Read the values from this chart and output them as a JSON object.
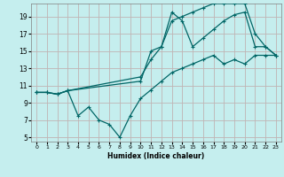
{
  "xlabel": "Humidex (Indice chaleur)",
  "bg_color": "#c5eeee",
  "grid_color": "#c0b4b4",
  "line_color": "#006666",
  "xlim": [
    -0.5,
    23.5
  ],
  "ylim": [
    4.5,
    20.5
  ],
  "xticks": [
    0,
    1,
    2,
    3,
    4,
    5,
    6,
    7,
    8,
    9,
    10,
    11,
    12,
    13,
    14,
    15,
    16,
    17,
    18,
    19,
    20,
    21,
    22,
    23
  ],
  "yticks": [
    5,
    7,
    9,
    11,
    13,
    15,
    17,
    19
  ],
  "line1_x": [
    0,
    1,
    2,
    3,
    10,
    11,
    12,
    13,
    14,
    15,
    16,
    17,
    18,
    19,
    20,
    21,
    22,
    23
  ],
  "line1_y": [
    10.2,
    10.2,
    10.0,
    10.4,
    11.5,
    15.0,
    15.5,
    18.5,
    19.0,
    19.5,
    20.0,
    20.5,
    20.5,
    20.5,
    20.5,
    17.0,
    15.5,
    14.5
  ],
  "line2_x": [
    0,
    1,
    2,
    3,
    10,
    11,
    12,
    13,
    14,
    15,
    16,
    17,
    18,
    19,
    20,
    21,
    22,
    23
  ],
  "line2_y": [
    10.2,
    10.2,
    10.0,
    10.4,
    12.0,
    14.0,
    15.5,
    19.5,
    18.5,
    15.5,
    16.5,
    17.5,
    18.5,
    19.2,
    19.5,
    15.5,
    15.5,
    14.5
  ],
  "line3_x": [
    0,
    1,
    2,
    3,
    4,
    5,
    6,
    7,
    8,
    9,
    10,
    11,
    12,
    13,
    14,
    15,
    16,
    17,
    18,
    19,
    20,
    21,
    22,
    23
  ],
  "line3_y": [
    10.2,
    10.2,
    10.0,
    10.4,
    7.5,
    8.5,
    7.0,
    6.5,
    5.0,
    7.5,
    9.5,
    10.5,
    11.5,
    12.5,
    13.0,
    13.5,
    14.0,
    14.5,
    13.5,
    14.0,
    13.5,
    14.5,
    14.5,
    14.5
  ]
}
